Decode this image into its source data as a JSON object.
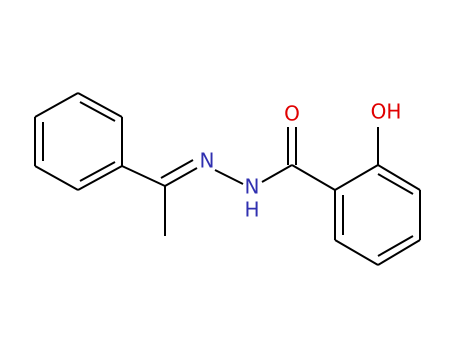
{
  "atoms": {
    "carbonyl_oxygen": "O",
    "hydroxyl": "OH",
    "imine_nitrogen": "N",
    "amide_nitrogen": "N",
    "amide_hydrogen": "H"
  }
}
